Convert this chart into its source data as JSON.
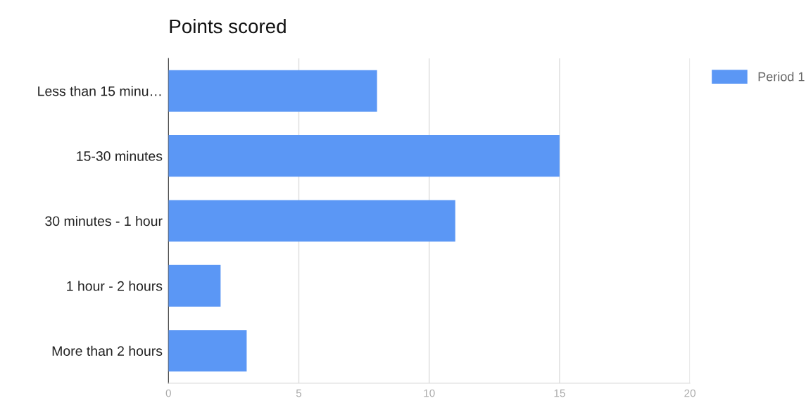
{
  "chart_data": {
    "type": "bar",
    "orientation": "horizontal",
    "title": "Points scored",
    "categories": [
      "Less than 15 minu…",
      "15-30 minutes",
      "30 minutes - 1 hour",
      "1 hour - 2 hours",
      "More than 2 hours"
    ],
    "series": [
      {
        "name": "Period 1",
        "color": "#5b97f5",
        "values": [
          8,
          15,
          11,
          2,
          3
        ]
      }
    ],
    "xlim": [
      0,
      20
    ],
    "xticks": [
      0,
      5,
      10,
      15,
      20
    ],
    "grid": "x",
    "legend": "top right"
  }
}
